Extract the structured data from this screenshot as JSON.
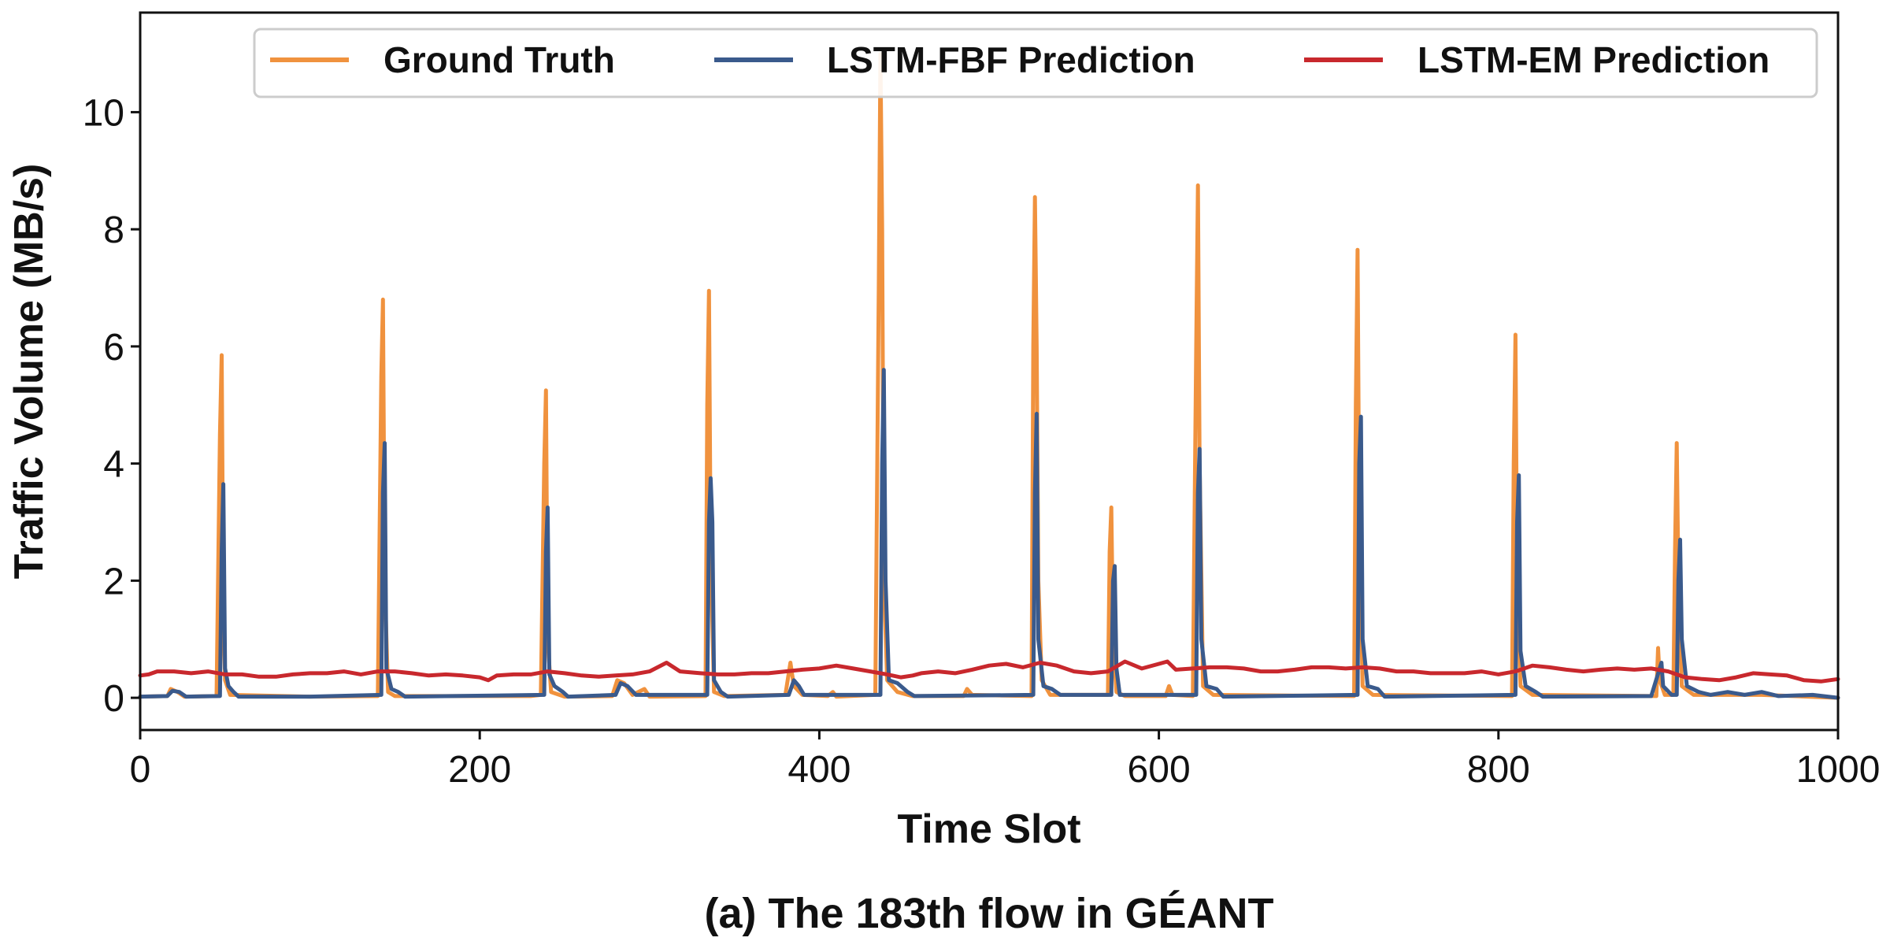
{
  "chart_data": {
    "type": "line",
    "xlabel": "Time Slot",
    "ylabel": "Traffic Volume (MB/s)",
    "caption": "(a) The 183th flow in GÉANT",
    "xlim": [
      0,
      1000
    ],
    "ylim": [
      -0.55,
      11.7
    ],
    "xticks": [
      0,
      200,
      400,
      600,
      800,
      1000
    ],
    "yticks": [
      0,
      2,
      4,
      6,
      8,
      10
    ],
    "grid": false,
    "legend_position": "top",
    "series": [
      {
        "name": "Ground Truth",
        "color": "#F0923E",
        "points": [
          [
            0,
            0.02
          ],
          [
            16,
            0.03
          ],
          [
            18,
            0.15
          ],
          [
            22,
            0.1
          ],
          [
            26,
            0.02
          ],
          [
            45,
            0.03
          ],
          [
            47,
            4.5
          ],
          [
            48,
            5.85
          ],
          [
            49,
            1.5
          ],
          [
            50,
            0.3
          ],
          [
            53,
            0.05
          ],
          [
            100,
            0.02
          ],
          [
            140,
            0.03
          ],
          [
            142,
            5.5
          ],
          [
            143,
            6.8
          ],
          [
            144,
            2.0
          ],
          [
            146,
            0.1
          ],
          [
            150,
            0.03
          ],
          [
            230,
            0.03
          ],
          [
            236,
            0.05
          ],
          [
            238,
            4.0
          ],
          [
            239,
            5.25
          ],
          [
            240,
            1.0
          ],
          [
            242,
            0.1
          ],
          [
            250,
            0.02
          ],
          [
            278,
            0.03
          ],
          [
            281,
            0.3
          ],
          [
            285,
            0.25
          ],
          [
            290,
            0.05
          ],
          [
            297,
            0.15
          ],
          [
            300,
            0.02
          ],
          [
            333,
            0.03
          ],
          [
            334,
            5.0
          ],
          [
            335,
            6.95
          ],
          [
            336,
            2.5
          ],
          [
            338,
            0.1
          ],
          [
            344,
            0.03
          ],
          [
            380,
            0.05
          ],
          [
            383,
            0.6
          ],
          [
            385,
            0.2
          ],
          [
            390,
            0.05
          ],
          [
            405,
            0.03
          ],
          [
            408,
            0.1
          ],
          [
            410,
            0.02
          ],
          [
            433,
            0.05
          ],
          [
            435,
            7.0
          ],
          [
            436,
            11.0
          ],
          [
            437,
            8.0
          ],
          [
            438,
            2.0
          ],
          [
            440,
            0.3
          ],
          [
            446,
            0.1
          ],
          [
            455,
            0.03
          ],
          [
            485,
            0.03
          ],
          [
            487,
            0.15
          ],
          [
            490,
            0.05
          ],
          [
            525,
            0.03
          ],
          [
            526,
            6.0
          ],
          [
            527,
            8.55
          ],
          [
            528,
            6.0
          ],
          [
            529,
            2.0
          ],
          [
            531,
            0.3
          ],
          [
            536,
            0.05
          ],
          [
            570,
            0.05
          ],
          [
            571,
            2.5
          ],
          [
            572,
            3.25
          ],
          [
            573,
            1.0
          ],
          [
            575,
            0.1
          ],
          [
            580,
            0.03
          ],
          [
            604,
            0.03
          ],
          [
            606,
            0.2
          ],
          [
            608,
            0.05
          ],
          [
            620,
            0.03
          ],
          [
            622,
            6.0
          ],
          [
            623,
            8.75
          ],
          [
            624,
            4.0
          ],
          [
            626,
            0.2
          ],
          [
            632,
            0.05
          ],
          [
            715,
            0.03
          ],
          [
            716,
            5.0
          ],
          [
            717,
            7.65
          ],
          [
            718,
            3.0
          ],
          [
            720,
            0.2
          ],
          [
            726,
            0.05
          ],
          [
            808,
            0.03
          ],
          [
            809,
            4.0
          ],
          [
            810,
            6.2
          ],
          [
            811,
            2.0
          ],
          [
            813,
            0.2
          ],
          [
            820,
            0.05
          ],
          [
            893,
            0.03
          ],
          [
            894,
            0.85
          ],
          [
            895,
            0.3
          ],
          [
            898,
            0.05
          ],
          [
            903,
            0.05
          ],
          [
            904,
            2.5
          ],
          [
            905,
            4.35
          ],
          [
            906,
            2.0
          ],
          [
            908,
            0.2
          ],
          [
            915,
            0.05
          ],
          [
            955,
            0.05
          ],
          [
            1000,
            0.0
          ]
        ]
      },
      {
        "name": "LSTM-FBF Prediction",
        "color": "#3A5A8C",
        "points": [
          [
            0,
            0.02
          ],
          [
            16,
            0.03
          ],
          [
            19,
            0.12
          ],
          [
            23,
            0.1
          ],
          [
            27,
            0.02
          ],
          [
            47,
            0.03
          ],
          [
            48,
            2.5
          ],
          [
            49,
            3.65
          ],
          [
            50,
            0.5
          ],
          [
            52,
            0.2
          ],
          [
            55,
            0.1
          ],
          [
            58,
            0.02
          ],
          [
            100,
            0.02
          ],
          [
            142,
            0.05
          ],
          [
            143,
            3.5
          ],
          [
            144,
            4.35
          ],
          [
            145,
            0.5
          ],
          [
            148,
            0.15
          ],
          [
            152,
            0.1
          ],
          [
            156,
            0.02
          ],
          [
            238,
            0.05
          ],
          [
            239,
            2.5
          ],
          [
            240,
            3.25
          ],
          [
            241,
            0.4
          ],
          [
            244,
            0.2
          ],
          [
            249,
            0.1
          ],
          [
            252,
            0.02
          ],
          [
            280,
            0.05
          ],
          [
            283,
            0.25
          ],
          [
            287,
            0.2
          ],
          [
            292,
            0.05
          ],
          [
            334,
            0.05
          ],
          [
            335,
            3.0
          ],
          [
            336,
            3.75
          ],
          [
            337,
            3.0
          ],
          [
            338,
            0.3
          ],
          [
            342,
            0.1
          ],
          [
            346,
            0.02
          ],
          [
            382,
            0.05
          ],
          [
            385,
            0.3
          ],
          [
            388,
            0.2
          ],
          [
            391,
            0.05
          ],
          [
            436,
            0.05
          ],
          [
            437,
            4.0
          ],
          [
            438,
            5.6
          ],
          [
            439,
            2.0
          ],
          [
            441,
            0.3
          ],
          [
            446,
            0.25
          ],
          [
            452,
            0.1
          ],
          [
            456,
            0.03
          ],
          [
            526,
            0.05
          ],
          [
            527,
            3.5
          ],
          [
            528,
            4.85
          ],
          [
            529,
            1.0
          ],
          [
            532,
            0.2
          ],
          [
            537,
            0.15
          ],
          [
            542,
            0.05
          ],
          [
            572,
            0.05
          ],
          [
            573,
            2.0
          ],
          [
            574,
            2.25
          ],
          [
            575,
            0.5
          ],
          [
            577,
            0.05
          ],
          [
            622,
            0.05
          ],
          [
            623,
            3.5
          ],
          [
            624,
            4.25
          ],
          [
            625,
            1.0
          ],
          [
            628,
            0.2
          ],
          [
            634,
            0.15
          ],
          [
            638,
            0.02
          ],
          [
            717,
            0.05
          ],
          [
            718,
            4.0
          ],
          [
            719,
            4.8
          ],
          [
            720,
            1.0
          ],
          [
            723,
            0.2
          ],
          [
            729,
            0.15
          ],
          [
            733,
            0.02
          ],
          [
            810,
            0.05
          ],
          [
            811,
            3.0
          ],
          [
            812,
            3.8
          ],
          [
            813,
            0.8
          ],
          [
            816,
            0.2
          ],
          [
            822,
            0.1
          ],
          [
            826,
            0.02
          ],
          [
            890,
            0.03
          ],
          [
            896,
            0.6
          ],
          [
            897,
            0.2
          ],
          [
            902,
            0.05
          ],
          [
            905,
            0.05
          ],
          [
            906,
            2.0
          ],
          [
            907,
            2.7
          ],
          [
            908,
            1.0
          ],
          [
            911,
            0.2
          ],
          [
            918,
            0.1
          ],
          [
            925,
            0.05
          ],
          [
            935,
            0.1
          ],
          [
            945,
            0.05
          ],
          [
            955,
            0.1
          ],
          [
            965,
            0.03
          ],
          [
            985,
            0.05
          ],
          [
            1000,
            0.0
          ]
        ]
      },
      {
        "name": "LSTM-EM Prediction",
        "color": "#C8282D",
        "points": [
          [
            0,
            0.38
          ],
          [
            5,
            0.4
          ],
          [
            10,
            0.45
          ],
          [
            20,
            0.45
          ],
          [
            30,
            0.42
          ],
          [
            40,
            0.45
          ],
          [
            50,
            0.4
          ],
          [
            60,
            0.4
          ],
          [
            70,
            0.36
          ],
          [
            80,
            0.36
          ],
          [
            90,
            0.4
          ],
          [
            100,
            0.42
          ],
          [
            110,
            0.42
          ],
          [
            120,
            0.45
          ],
          [
            130,
            0.4
          ],
          [
            140,
            0.45
          ],
          [
            150,
            0.45
          ],
          [
            160,
            0.42
          ],
          [
            170,
            0.38
          ],
          [
            180,
            0.4
          ],
          [
            190,
            0.38
          ],
          [
            200,
            0.35
          ],
          [
            205,
            0.3
          ],
          [
            210,
            0.38
          ],
          [
            220,
            0.4
          ],
          [
            230,
            0.4
          ],
          [
            240,
            0.45
          ],
          [
            250,
            0.42
          ],
          [
            260,
            0.38
          ],
          [
            270,
            0.36
          ],
          [
            280,
            0.38
          ],
          [
            290,
            0.4
          ],
          [
            300,
            0.45
          ],
          [
            310,
            0.6
          ],
          [
            318,
            0.45
          ],
          [
            330,
            0.42
          ],
          [
            340,
            0.4
          ],
          [
            350,
            0.4
          ],
          [
            360,
            0.42
          ],
          [
            370,
            0.42
          ],
          [
            380,
            0.45
          ],
          [
            390,
            0.48
          ],
          [
            400,
            0.5
          ],
          [
            410,
            0.55
          ],
          [
            420,
            0.5
          ],
          [
            430,
            0.45
          ],
          [
            440,
            0.4
          ],
          [
            448,
            0.35
          ],
          [
            455,
            0.38
          ],
          [
            460,
            0.42
          ],
          [
            470,
            0.45
          ],
          [
            480,
            0.42
          ],
          [
            490,
            0.48
          ],
          [
            500,
            0.55
          ],
          [
            510,
            0.58
          ],
          [
            520,
            0.52
          ],
          [
            530,
            0.6
          ],
          [
            540,
            0.55
          ],
          [
            550,
            0.45
          ],
          [
            560,
            0.42
          ],
          [
            570,
            0.45
          ],
          [
            580,
            0.62
          ],
          [
            590,
            0.5
          ],
          [
            600,
            0.58
          ],
          [
            605,
            0.62
          ],
          [
            610,
            0.48
          ],
          [
            620,
            0.5
          ],
          [
            630,
            0.52
          ],
          [
            640,
            0.52
          ],
          [
            650,
            0.5
          ],
          [
            660,
            0.45
          ],
          [
            670,
            0.45
          ],
          [
            680,
            0.48
          ],
          [
            690,
            0.52
          ],
          [
            700,
            0.52
          ],
          [
            710,
            0.5
          ],
          [
            720,
            0.52
          ],
          [
            730,
            0.5
          ],
          [
            740,
            0.45
          ],
          [
            750,
            0.45
          ],
          [
            760,
            0.42
          ],
          [
            770,
            0.42
          ],
          [
            780,
            0.42
          ],
          [
            790,
            0.45
          ],
          [
            800,
            0.4
          ],
          [
            810,
            0.45
          ],
          [
            820,
            0.55
          ],
          [
            830,
            0.52
          ],
          [
            840,
            0.48
          ],
          [
            850,
            0.45
          ],
          [
            860,
            0.48
          ],
          [
            870,
            0.5
          ],
          [
            880,
            0.48
          ],
          [
            890,
            0.5
          ],
          [
            900,
            0.45
          ],
          [
            910,
            0.35
          ],
          [
            920,
            0.32
          ],
          [
            930,
            0.3
          ],
          [
            940,
            0.35
          ],
          [
            950,
            0.42
          ],
          [
            960,
            0.4
          ],
          [
            970,
            0.38
          ],
          [
            980,
            0.3
          ],
          [
            990,
            0.28
          ],
          [
            1000,
            0.32
          ]
        ]
      }
    ]
  }
}
